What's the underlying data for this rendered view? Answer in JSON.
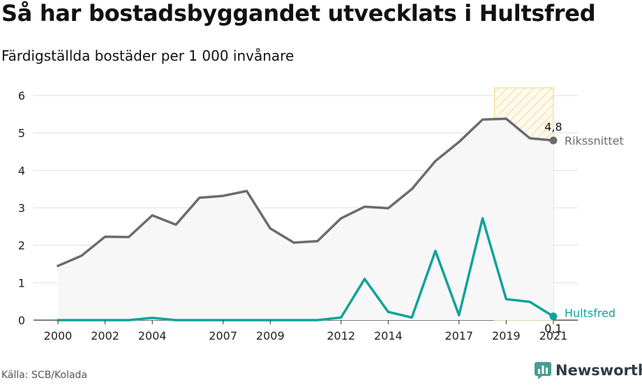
{
  "header": {
    "title": "Så har bostadsbyggandet utvecklats i Hultsfred",
    "subtitle": "Färdigställda bostäder per 1 000 invånare"
  },
  "footer": {
    "source": "Källa: SCB/Kolada",
    "brand": "Newsworthy"
  },
  "colors": {
    "riket": "#6b6b70",
    "kommun": "#10a39a",
    "highlight": "#f5d98a",
    "area": "#f7f7f8",
    "grid": "#dddddd"
  },
  "chart_data": {
    "type": "line",
    "title": "Så har bostadsbyggandet utvecklats i Hultsfred",
    "subtitle": "Färdigställda bostäder per 1 000 invånare",
    "x": [
      2000,
      2001,
      2002,
      2003,
      2004,
      2005,
      2006,
      2007,
      2008,
      2009,
      2010,
      2011,
      2012,
      2013,
      2014,
      2015,
      2016,
      2017,
      2018,
      2019,
      2020,
      2021
    ],
    "x_tick_labels": [
      "2000",
      "2002",
      "2004",
      "2007",
      "2009",
      "2012",
      "2014",
      "2017",
      "2019",
      "2021"
    ],
    "x_tick_values": [
      2000,
      2002,
      2004,
      2007,
      2009,
      2012,
      2014,
      2017,
      2019,
      2021
    ],
    "ylim": [
      0,
      6
    ],
    "y_ticks": [
      0,
      1,
      2,
      3,
      4,
      5,
      6
    ],
    "grid": true,
    "highlight_range": [
      2018.5,
      2021
    ],
    "series": [
      {
        "name": "Rikssnittet",
        "values": [
          1.45,
          1.72,
          2.23,
          2.22,
          2.8,
          2.55,
          3.27,
          3.32,
          3.45,
          2.45,
          2.07,
          2.11,
          2.72,
          3.03,
          2.99,
          3.5,
          4.25,
          4.76,
          5.36,
          5.38,
          4.86,
          4.8
        ],
        "end_label": "4,8"
      },
      {
        "name": "Hultsfred",
        "values": [
          0,
          0,
          0,
          0,
          0.06,
          0,
          0,
          0,
          0,
          0,
          0,
          0,
          0.07,
          1.1,
          0.22,
          0.07,
          1.85,
          0.13,
          2.72,
          0.56,
          0.49,
          0.1
        ],
        "end_label": "0,1"
      }
    ]
  }
}
